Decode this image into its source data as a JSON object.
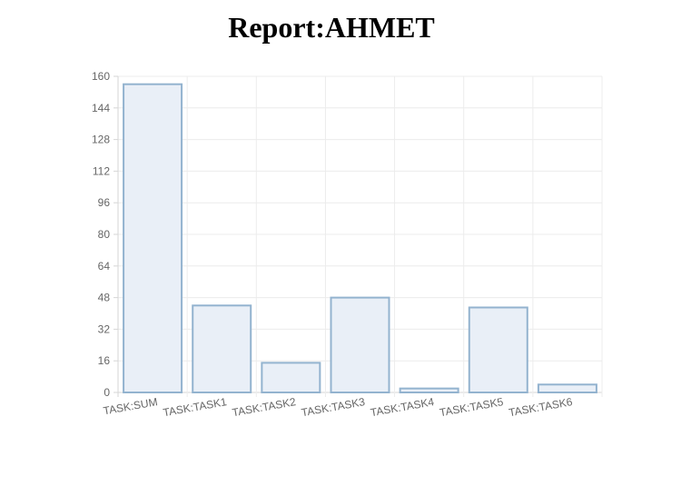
{
  "page": {
    "title": "Report:AHMET"
  },
  "chart_data": {
    "type": "bar",
    "title": "",
    "xlabel": "",
    "ylabel": "",
    "categories": [
      "TASK:SUM",
      "TASK:TASK1",
      "TASK:TASK2",
      "TASK:TASK3",
      "TASK:TASK4",
      "TASK:TASK5",
      "TASK:TASK6"
    ],
    "values": [
      156,
      44,
      15,
      48,
      2,
      43,
      4
    ],
    "ylim": [
      0,
      160
    ],
    "yticks": [
      0,
      16,
      32,
      48,
      64,
      80,
      96,
      112,
      128,
      144,
      160
    ],
    "grid": true,
    "legend": "none",
    "colors": {
      "bar_fill": "#e9eff7",
      "bar_stroke": "#93b3cf",
      "grid": "#ececec",
      "axis": "#d6d6d6",
      "tick_text": "#666666"
    }
  }
}
